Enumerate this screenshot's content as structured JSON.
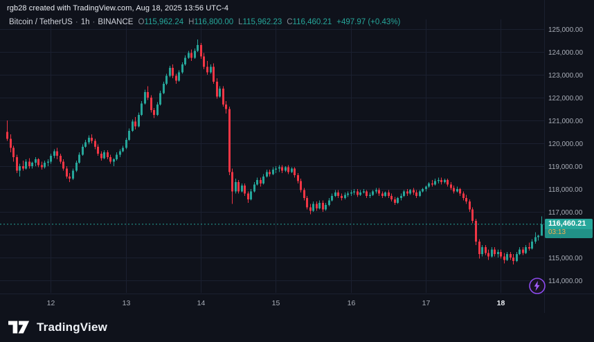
{
  "attribution": "rgb28 created with TradingView.com, Aug 18, 2025 13:56 UTC-4",
  "legend": {
    "symbol": "Bitcoin / TetherUS",
    "sep": "·",
    "interval": "1h",
    "exchange": "BINANCE",
    "ohlc": {
      "o": {
        "k": "O",
        "v": "115,962.24"
      },
      "h": {
        "k": "H",
        "v": "116,800.00"
      },
      "l": {
        "k": "L",
        "v": "115,962.23"
      },
      "c": {
        "k": "C",
        "v": "116,460.21"
      }
    },
    "change": "+497.97 (+0.43%)"
  },
  "price_label": {
    "text": "116,460.21",
    "countdown": "03:13"
  },
  "footer": {
    "brand": "TradingView"
  },
  "icons": {
    "flash": "flash-boost-icon",
    "logo": "tradingview-logo-mark"
  },
  "colors": {
    "background": "#0f121b",
    "grid": "#1b2030",
    "up": "#26a69a",
    "down": "#f23645",
    "axis_text": "#a9aeb8",
    "axis_text_strong": "#eef1f6",
    "badge": "#26a69a",
    "countdown": "#f8b04e",
    "accent_purple": "#8d4bf0"
  },
  "chart_data": {
    "type": "candlestick",
    "title": "Bitcoin / TetherUS · 1h · BINANCE",
    "xlabel": "",
    "ylabel": "",
    "unit_multiplier": 1000,
    "ylim": [
      113450,
      125430
    ],
    "last_price": 116460.21,
    "y_ticks": [
      114000,
      115000,
      116000,
      117000,
      118000,
      119000,
      120000,
      121000,
      122000,
      123000,
      124000,
      125000
    ],
    "y_tick_labels": [
      "114,000.00",
      "115,000.00",
      "116,000.00",
      "117,000.00",
      "118,000.00",
      "119,000.00",
      "120,000.00",
      "121,000.00",
      "122,000.00",
      "123,000.00",
      "124,000.00",
      "125,000.00"
    ],
    "x_tick_labels": [
      "12",
      "13",
      "14",
      "15",
      "16",
      "17",
      "18"
    ],
    "x_tick_candle_indices": [
      14,
      38,
      62,
      86,
      110,
      134,
      158
    ],
    "x_tick_bold": [
      false,
      false,
      false,
      false,
      false,
      false,
      true
    ],
    "candles_ohlc_k": [
      [
        120.5,
        121.0,
        120.1,
        120.2
      ],
      [
        120.2,
        120.4,
        119.6,
        119.8
      ],
      [
        119.8,
        119.9,
        119.2,
        119.4
      ],
      [
        119.4,
        119.5,
        118.7,
        118.8
      ],
      [
        118.8,
        119.1,
        118.55,
        119.0
      ],
      [
        119.0,
        119.25,
        118.8,
        118.9
      ],
      [
        118.9,
        119.3,
        118.85,
        119.2
      ],
      [
        119.2,
        119.35,
        118.9,
        119.0
      ],
      [
        119.0,
        119.2,
        118.9,
        119.15
      ],
      [
        119.15,
        119.4,
        119.0,
        119.3
      ],
      [
        119.3,
        119.35,
        118.95,
        119.05
      ],
      [
        119.05,
        119.2,
        118.85,
        118.95
      ],
      [
        118.95,
        119.25,
        118.9,
        119.15
      ],
      [
        119.15,
        119.3,
        119.0,
        119.2
      ],
      [
        119.2,
        119.55,
        119.1,
        119.45
      ],
      [
        119.45,
        119.75,
        119.35,
        119.65
      ],
      [
        119.65,
        119.8,
        119.3,
        119.45
      ],
      [
        119.45,
        119.55,
        119.1,
        119.2
      ],
      [
        119.2,
        119.3,
        118.8,
        118.9
      ],
      [
        118.9,
        119.0,
        118.45,
        118.55
      ],
      [
        118.55,
        118.7,
        118.3,
        118.45
      ],
      [
        118.45,
        118.9,
        118.4,
        118.8
      ],
      [
        118.8,
        119.25,
        118.75,
        119.15
      ],
      [
        119.15,
        119.6,
        119.1,
        119.5
      ],
      [
        119.5,
        119.95,
        119.45,
        119.85
      ],
      [
        119.85,
        120.15,
        119.8,
        120.05
      ],
      [
        120.05,
        120.35,
        119.95,
        120.25
      ],
      [
        120.25,
        120.4,
        120.0,
        120.1
      ],
      [
        120.1,
        120.2,
        119.75,
        119.85
      ],
      [
        119.85,
        119.95,
        119.45,
        119.55
      ],
      [
        119.55,
        119.65,
        119.25,
        119.35
      ],
      [
        119.35,
        119.7,
        119.3,
        119.6
      ],
      [
        119.6,
        119.7,
        119.3,
        119.4
      ],
      [
        119.4,
        119.5,
        119.1,
        119.2
      ],
      [
        119.2,
        119.35,
        119.0,
        119.3
      ],
      [
        119.3,
        119.6,
        119.25,
        119.5
      ],
      [
        119.5,
        119.75,
        119.4,
        119.65
      ],
      [
        119.65,
        119.9,
        119.6,
        119.8
      ],
      [
        119.8,
        120.25,
        119.75,
        120.15
      ],
      [
        120.15,
        120.65,
        120.1,
        120.55
      ],
      [
        120.55,
        121.05,
        120.5,
        120.95
      ],
      [
        120.95,
        121.15,
        120.6,
        120.75
      ],
      [
        120.75,
        121.35,
        120.7,
        121.25
      ],
      [
        121.25,
        121.85,
        121.2,
        121.75
      ],
      [
        121.75,
        122.35,
        121.7,
        122.25
      ],
      [
        122.25,
        122.5,
        121.9,
        122.0
      ],
      [
        122.0,
        122.1,
        121.35,
        121.45
      ],
      [
        121.45,
        121.55,
        121.1,
        121.25
      ],
      [
        121.25,
        121.8,
        121.2,
        121.7
      ],
      [
        121.7,
        122.3,
        121.65,
        122.2
      ],
      [
        122.2,
        122.7,
        122.15,
        122.6
      ],
      [
        122.6,
        123.05,
        122.55,
        122.95
      ],
      [
        122.95,
        123.4,
        122.9,
        123.3
      ],
      [
        123.3,
        123.45,
        122.85,
        122.95
      ],
      [
        122.95,
        123.05,
        122.6,
        122.75
      ],
      [
        122.75,
        123.2,
        122.7,
        123.1
      ],
      [
        123.1,
        123.55,
        123.05,
        123.45
      ],
      [
        123.45,
        123.85,
        123.4,
        123.75
      ],
      [
        123.75,
        124.05,
        123.7,
        123.95
      ],
      [
        123.95,
        124.1,
        123.6,
        123.75
      ],
      [
        123.75,
        124.15,
        123.7,
        124.05
      ],
      [
        124.05,
        124.55,
        124.0,
        124.3
      ],
      [
        124.3,
        124.4,
        123.7,
        123.8
      ],
      [
        123.8,
        123.95,
        123.25,
        123.35
      ],
      [
        123.35,
        123.6,
        123.0,
        123.1
      ],
      [
        123.1,
        123.45,
        123.05,
        123.35
      ],
      [
        123.35,
        123.5,
        122.6,
        122.7
      ],
      [
        122.7,
        122.85,
        121.95,
        122.05
      ],
      [
        122.05,
        122.5,
        122.0,
        122.4
      ],
      [
        122.4,
        122.5,
        121.6,
        121.7
      ],
      [
        121.7,
        121.85,
        121.3,
        121.5
      ],
      [
        121.5,
        121.6,
        118.6,
        118.75
      ],
      [
        118.75,
        118.9,
        117.35,
        117.9
      ],
      [
        117.9,
        118.45,
        117.8,
        118.3
      ],
      [
        118.3,
        118.4,
        117.8,
        117.9
      ],
      [
        117.9,
        118.25,
        117.85,
        118.15
      ],
      [
        118.15,
        118.25,
        117.7,
        117.8
      ],
      [
        117.8,
        117.9,
        117.4,
        117.55
      ],
      [
        117.55,
        118.0,
        117.5,
        117.9
      ],
      [
        117.9,
        118.3,
        117.85,
        118.2
      ],
      [
        118.2,
        118.5,
        118.15,
        118.4
      ],
      [
        118.4,
        118.5,
        118.1,
        118.25
      ],
      [
        118.25,
        118.65,
        118.2,
        118.55
      ],
      [
        118.55,
        118.85,
        118.5,
        118.75
      ],
      [
        118.75,
        118.85,
        118.55,
        118.65
      ],
      [
        118.65,
        118.95,
        118.6,
        118.85
      ],
      [
        118.85,
        119.0,
        118.7,
        118.9
      ],
      [
        118.9,
        119.05,
        118.75,
        118.95
      ],
      [
        118.95,
        119.05,
        118.7,
        118.8
      ],
      [
        118.8,
        119.0,
        118.75,
        118.95
      ],
      [
        118.95,
        119.05,
        118.65,
        118.75
      ],
      [
        118.75,
        118.95,
        118.7,
        118.9
      ],
      [
        118.9,
        118.95,
        118.5,
        118.6
      ],
      [
        118.6,
        118.7,
        118.25,
        118.35
      ],
      [
        118.35,
        118.45,
        117.85,
        117.95
      ],
      [
        117.95,
        118.05,
        117.5,
        117.6
      ],
      [
        117.6,
        117.7,
        117.1,
        117.2
      ],
      [
        117.2,
        117.35,
        116.9,
        117.05
      ],
      [
        117.05,
        117.45,
        117.0,
        117.35
      ],
      [
        117.35,
        117.45,
        117.05,
        117.15
      ],
      [
        117.15,
        117.5,
        117.1,
        117.4
      ],
      [
        117.4,
        117.5,
        117.0,
        117.1
      ],
      [
        117.1,
        117.4,
        117.05,
        117.3
      ],
      [
        117.3,
        117.6,
        117.25,
        117.5
      ],
      [
        117.5,
        117.8,
        117.45,
        117.7
      ],
      [
        117.7,
        117.95,
        117.65,
        117.85
      ],
      [
        117.85,
        117.95,
        117.6,
        117.7
      ],
      [
        117.7,
        117.8,
        117.5,
        117.6
      ],
      [
        117.6,
        117.85,
        117.55,
        117.75
      ],
      [
        117.75,
        117.9,
        117.65,
        117.8
      ],
      [
        117.8,
        117.95,
        117.7,
        117.85
      ],
      [
        117.85,
        118.0,
        117.75,
        117.9
      ],
      [
        117.9,
        118.0,
        117.65,
        117.75
      ],
      [
        117.75,
        117.95,
        117.7,
        117.85
      ],
      [
        117.85,
        118.0,
        117.8,
        117.9
      ],
      [
        117.9,
        117.95,
        117.6,
        117.7
      ],
      [
        117.7,
        117.85,
        117.6,
        117.75
      ],
      [
        117.75,
        117.95,
        117.7,
        117.9
      ],
      [
        117.9,
        118.05,
        117.8,
        117.95
      ],
      [
        117.95,
        118.05,
        117.7,
        117.8
      ],
      [
        117.8,
        117.9,
        117.6,
        117.7
      ],
      [
        117.7,
        117.9,
        117.65,
        117.85
      ],
      [
        117.85,
        117.95,
        117.6,
        117.7
      ],
      [
        117.7,
        117.8,
        117.45,
        117.55
      ],
      [
        117.55,
        117.65,
        117.3,
        117.4
      ],
      [
        117.4,
        117.65,
        117.35,
        117.6
      ],
      [
        117.6,
        117.8,
        117.5,
        117.7
      ],
      [
        117.7,
        117.95,
        117.65,
        117.9
      ],
      [
        117.9,
        118.0,
        117.7,
        117.8
      ],
      [
        117.8,
        118.0,
        117.75,
        117.95
      ],
      [
        117.95,
        118.05,
        117.75,
        117.85
      ],
      [
        117.85,
        117.95,
        117.6,
        117.7
      ],
      [
        117.7,
        117.95,
        117.65,
        117.9
      ],
      [
        117.9,
        118.05,
        117.85,
        118.0
      ],
      [
        118.0,
        118.15,
        117.9,
        118.1
      ],
      [
        118.1,
        118.3,
        118.05,
        118.25
      ],
      [
        118.25,
        118.4,
        118.1,
        118.2
      ],
      [
        118.2,
        118.45,
        118.15,
        118.35
      ],
      [
        118.35,
        118.5,
        118.25,
        118.4
      ],
      [
        118.4,
        118.5,
        118.2,
        118.3
      ],
      [
        118.3,
        118.45,
        118.25,
        118.4
      ],
      [
        118.4,
        118.45,
        118.1,
        118.2
      ],
      [
        118.2,
        118.3,
        117.95,
        118.05
      ],
      [
        118.05,
        118.15,
        117.8,
        117.9
      ],
      [
        117.9,
        118.1,
        117.85,
        118.0
      ],
      [
        118.0,
        118.05,
        117.7,
        117.8
      ],
      [
        117.8,
        117.9,
        117.5,
        117.6
      ],
      [
        117.6,
        117.75,
        117.35,
        117.45
      ],
      [
        117.45,
        117.55,
        117.0,
        117.1
      ],
      [
        117.1,
        117.2,
        116.5,
        116.6
      ],
      [
        116.6,
        116.7,
        115.55,
        115.7
      ],
      [
        115.7,
        115.8,
        114.95,
        115.15
      ],
      [
        115.15,
        115.55,
        115.05,
        115.45
      ],
      [
        115.45,
        115.55,
        115.1,
        115.2
      ],
      [
        115.2,
        115.35,
        114.9,
        115.05
      ],
      [
        115.05,
        115.45,
        115.0,
        115.35
      ],
      [
        115.35,
        115.45,
        115.05,
        115.15
      ],
      [
        115.15,
        115.35,
        115.0,
        115.25
      ],
      [
        115.25,
        115.35,
        114.95,
        115.05
      ],
      [
        115.05,
        115.2,
        114.75,
        114.9
      ],
      [
        114.9,
        115.25,
        114.85,
        115.15
      ],
      [
        115.15,
        115.25,
        114.9,
        115.0
      ],
      [
        115.0,
        115.15,
        114.7,
        114.85
      ],
      [
        114.85,
        115.25,
        114.8,
        115.15
      ],
      [
        115.15,
        115.45,
        115.1,
        115.35
      ],
      [
        115.35,
        115.45,
        115.1,
        115.2
      ],
      [
        115.2,
        115.55,
        115.15,
        115.45
      ],
      [
        115.45,
        115.65,
        115.3,
        115.4
      ],
      [
        115.4,
        115.8,
        115.35,
        115.7
      ],
      [
        115.7,
        116.1,
        115.6,
        115.9
      ],
      [
        115.9,
        116.0,
        115.75,
        115.96
      ],
      [
        115.96,
        116.8,
        115.96,
        116.46
      ]
    ]
  }
}
